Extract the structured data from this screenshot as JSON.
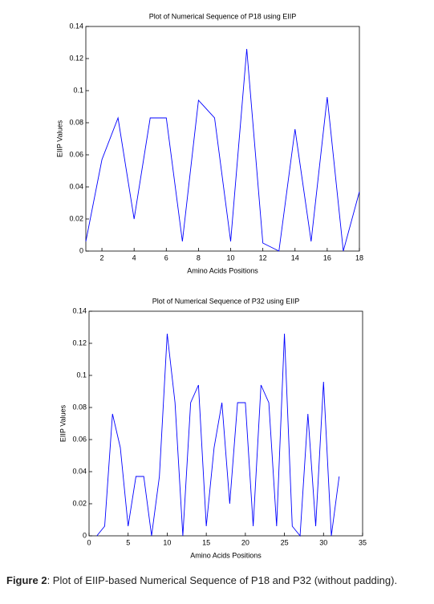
{
  "chart_data": [
    {
      "type": "line",
      "title": "Plot of Numerical Sequence of P18 using EIIP",
      "xlabel": "Amino Acids Positions",
      "ylabel": "EIIP Values",
      "x": [
        1,
        2,
        3,
        4,
        5,
        6,
        7,
        8,
        9,
        10,
        11,
        12,
        13,
        14,
        15,
        16,
        17,
        18
      ],
      "series": [
        {
          "color": "#0000ff",
          "values": [
            0.006,
            0.057,
            0.083,
            0.02,
            0.083,
            0.083,
            0.006,
            0.094,
            0.083,
            0.006,
            0.126,
            0.005,
            0.0,
            0.076,
            0.006,
            0.096,
            0.0,
            0.037
          ]
        }
      ],
      "xlim": [
        1,
        18
      ],
      "xticks": [
        2,
        4,
        6,
        8,
        10,
        12,
        14,
        16,
        18
      ],
      "ylim": [
        0,
        0.14
      ],
      "yticks": [
        0,
        0.02,
        0.04,
        0.06,
        0.08,
        0.1,
        0.12,
        0.14
      ]
    },
    {
      "type": "line",
      "title": "Plot of Numerical Sequence of P32 using EIIP",
      "xlabel": "Amino Acids Positions",
      "ylabel": "EIIP Values",
      "x": [
        1,
        2,
        3,
        4,
        5,
        6,
        7,
        8,
        9,
        10,
        11,
        12,
        13,
        14,
        15,
        16,
        17,
        18,
        19,
        20,
        21,
        22,
        23,
        24,
        25,
        26,
        27,
        28,
        29,
        30,
        31,
        32
      ],
      "series": [
        {
          "color": "#0000ff",
          "values": [
            0.0,
            0.006,
            0.076,
            0.055,
            0.006,
            0.037,
            0.037,
            0.0,
            0.037,
            0.126,
            0.083,
            0.0,
            0.083,
            0.094,
            0.006,
            0.055,
            0.083,
            0.02,
            0.083,
            0.083,
            0.006,
            0.094,
            0.083,
            0.006,
            0.126,
            0.006,
            0.0,
            0.076,
            0.006,
            0.096,
            0.0,
            0.037
          ]
        }
      ],
      "xlim": [
        0,
        35
      ],
      "xticks": [
        0,
        5,
        10,
        15,
        20,
        25,
        30,
        35
      ],
      "ylim": [
        0,
        0.14
      ],
      "yticks": [
        0,
        0.02,
        0.04,
        0.06,
        0.08,
        0.1,
        0.12,
        0.14
      ]
    }
  ],
  "caption": {
    "label": "Figure 2",
    "text": ": Plot of EIIP-based Numerical Sequence of P18 and P32 (without padding)."
  }
}
